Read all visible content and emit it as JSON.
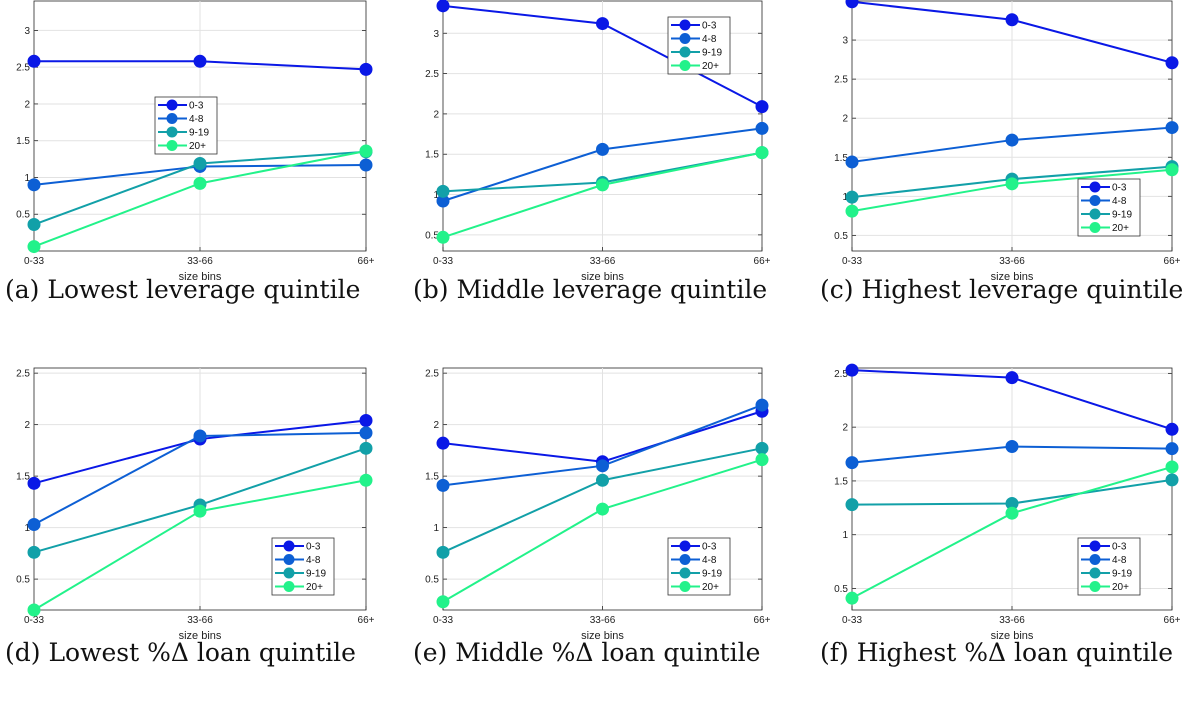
{
  "series_colors": [
    "#0a18e6",
    "#0d5fd4",
    "#12a0a8",
    "#22f28a"
  ],
  "chart_data": [
    {
      "type": "line",
      "caption": "(a) Lowest leverage quintile",
      "xlabel": "size bins",
      "categories": [
        "0-33",
        "33-66",
        "66+"
      ],
      "yticks": [
        "0.5",
        "1",
        "1.5",
        "2",
        "2.5",
        "3"
      ],
      "ylim": [
        0,
        3.4
      ],
      "grid": true,
      "legend": "center",
      "series": [
        {
          "name": "0-3",
          "values": [
            2.58,
            2.58,
            2.47
          ]
        },
        {
          "name": "4-8",
          "values": [
            0.9,
            1.15,
            1.17
          ]
        },
        {
          "name": "9-19",
          "values": [
            0.36,
            1.19,
            1.35
          ]
        },
        {
          "name": "20+",
          "values": [
            0.06,
            0.92,
            1.36
          ]
        }
      ]
    },
    {
      "type": "line",
      "caption": "(b) Middle leverage quintile",
      "xlabel": "size bins",
      "categories": [
        "0-33",
        "33-66",
        "66+"
      ],
      "yticks": [
        "0.5",
        "1",
        "1.5",
        "2",
        "2.5",
        "3"
      ],
      "ylim": [
        0.3,
        3.4
      ],
      "grid": true,
      "legend": "top-right",
      "series": [
        {
          "name": "0-3",
          "values": [
            3.34,
            3.12,
            2.09
          ]
        },
        {
          "name": "4-8",
          "values": [
            0.92,
            1.56,
            1.82
          ]
        },
        {
          "name": "9-19",
          "values": [
            1.04,
            1.15,
            1.52
          ]
        },
        {
          "name": "20+",
          "values": [
            0.47,
            1.12,
            1.52
          ]
        }
      ]
    },
    {
      "type": "line",
      "caption": "(c) Highest leverage quintile",
      "xlabel": "size bins",
      "categories": [
        "0-33",
        "33-66",
        "66+"
      ],
      "yticks": [
        "0.5",
        "1",
        "1.5",
        "2",
        "2.5",
        "3"
      ],
      "ylim": [
        0.3,
        3.5
      ],
      "grid": true,
      "legend": "bottom-right",
      "series": [
        {
          "name": "0-3",
          "values": [
            3.49,
            3.26,
            2.71
          ]
        },
        {
          "name": "4-8",
          "values": [
            1.44,
            1.72,
            1.88
          ]
        },
        {
          "name": "9-19",
          "values": [
            0.99,
            1.22,
            1.38
          ]
        },
        {
          "name": "20+",
          "values": [
            0.81,
            1.16,
            1.34
          ]
        }
      ]
    },
    {
      "type": "line",
      "caption": "(d) Lowest %Δ loan quintile",
      "xlabel": "size bins",
      "categories": [
        "0-33",
        "33-66",
        "66+"
      ],
      "yticks": [
        "0.5",
        "1",
        "1.5",
        "2",
        "2.5"
      ],
      "ylim": [
        0.2,
        2.55
      ],
      "grid": true,
      "legend": "bottom-right",
      "series": [
        {
          "name": "0-3",
          "values": [
            1.43,
            1.86,
            2.04
          ]
        },
        {
          "name": "4-8",
          "values": [
            1.03,
            1.89,
            1.92
          ]
        },
        {
          "name": "9-19",
          "values": [
            0.76,
            1.22,
            1.77
          ]
        },
        {
          "name": "20+",
          "values": [
            0.2,
            1.16,
            1.46
          ]
        }
      ]
    },
    {
      "type": "line",
      "caption": "(e) Middle %Δ loan quintile",
      "xlabel": "size bins",
      "categories": [
        "0-33",
        "33-66",
        "66+"
      ],
      "yticks": [
        "0.5",
        "1",
        "1.5",
        "2",
        "2.5"
      ],
      "ylim": [
        0.2,
        2.55
      ],
      "grid": true,
      "legend": "bottom-right",
      "series": [
        {
          "name": "0-3",
          "values": [
            1.82,
            1.64,
            2.13
          ]
        },
        {
          "name": "4-8",
          "values": [
            1.41,
            1.6,
            2.19
          ]
        },
        {
          "name": "9-19",
          "values": [
            0.76,
            1.46,
            1.77
          ]
        },
        {
          "name": "20+",
          "values": [
            0.28,
            1.18,
            1.66
          ]
        }
      ]
    },
    {
      "type": "line",
      "caption": "(f) Highest %Δ loan quintile",
      "xlabel": "size bins",
      "categories": [
        "0-33",
        "33-66",
        "66+"
      ],
      "yticks": [
        "0.5",
        "1",
        "1.5",
        "2",
        "2.5"
      ],
      "ylim": [
        0.3,
        2.55
      ],
      "grid": true,
      "legend": "bottom-right",
      "series": [
        {
          "name": "0-3",
          "values": [
            2.53,
            2.46,
            1.98
          ]
        },
        {
          "name": "4-8",
          "values": [
            1.67,
            1.82,
            1.8
          ]
        },
        {
          "name": "9-19",
          "values": [
            1.28,
            1.29,
            1.51
          ]
        },
        {
          "name": "20+",
          "values": [
            0.41,
            1.2,
            1.63
          ]
        }
      ]
    }
  ]
}
